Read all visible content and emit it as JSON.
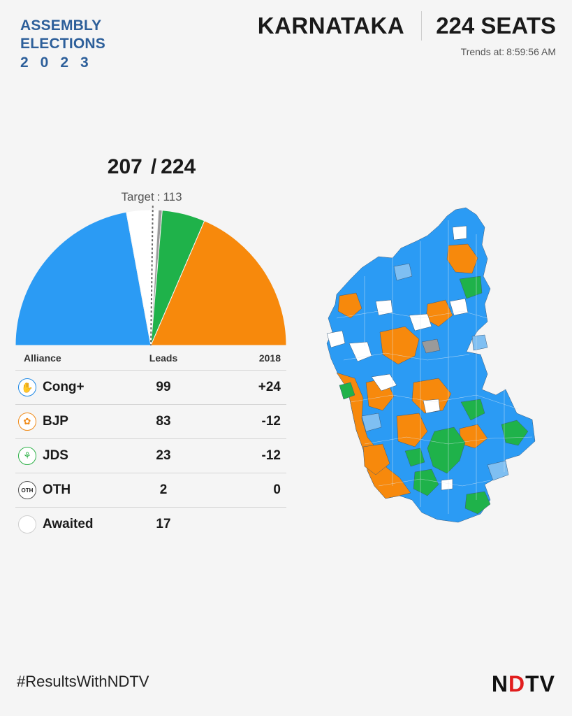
{
  "brand": {
    "line1": "ASSEMBLY",
    "line2": "ELECTIONS",
    "year": "2023"
  },
  "header": {
    "state": "KARNATAKA",
    "seats_label": "224 SEATS",
    "trends_label": "Trends at:",
    "trends_time": "8:59:56 AM"
  },
  "summary": {
    "declared": "207",
    "separator": "/",
    "total": "224",
    "target_label": "Target",
    "target_value": "113"
  },
  "colors": {
    "cong": "#2b9bf4",
    "bjp": "#f7890c",
    "jds": "#1fb24a",
    "oth": "#9a9a9a",
    "awaited": "#ffffff",
    "bg": "#f5f5f5"
  },
  "table": {
    "headers": {
      "alliance": "Alliance",
      "leads": "Leads",
      "prev": "2018"
    },
    "rows": [
      {
        "symbol": "hand-icon",
        "party": "Cong+",
        "leads": "99",
        "change": "+24"
      },
      {
        "symbol": "lotus-icon",
        "party": "BJP",
        "leads": "83",
        "change": "-12"
      },
      {
        "symbol": "farmer-icon",
        "party": "JDS",
        "leads": "23",
        "change": "-12"
      },
      {
        "symbol": "oth-icon",
        "symbol_text": "OTH",
        "party": "OTH",
        "leads": "2",
        "change": "0"
      },
      {
        "symbol": "blank-icon",
        "party": "Awaited",
        "leads": "17",
        "change": ""
      }
    ]
  },
  "chart_data": {
    "type": "pie",
    "subtype": "semicircle",
    "categories": [
      "Cong+",
      "Awaited",
      "OTH",
      "JDS",
      "BJP"
    ],
    "values": [
      99,
      17,
      2,
      23,
      83
    ],
    "colors": [
      "#2b9bf4",
      "#ffffff",
      "#9a9a9a",
      "#1fb24a",
      "#f7890c"
    ],
    "total": 224,
    "majority_marker": 113
  },
  "footer": {
    "hashtag": "#ResultsWithNDTV",
    "logo_n": "N",
    "logo_d": "D",
    "logo_tv": "TV"
  }
}
